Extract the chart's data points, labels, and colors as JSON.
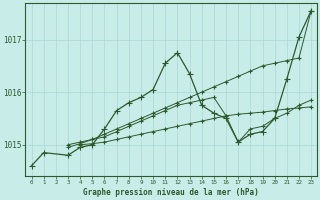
{
  "xlabel": "Graphe pression niveau de la mer (hPa)",
  "background_color": "#c8ece8",
  "grid_color": "#a8d8d4",
  "line_color": "#2d5a2d",
  "xlim": [
    -0.5,
    23.5
  ],
  "ylim": [
    1014.4,
    1017.7
  ],
  "yticks": [
    1015,
    1016,
    1017
  ],
  "xticks": [
    0,
    1,
    2,
    3,
    4,
    5,
    6,
    7,
    8,
    9,
    10,
    11,
    12,
    13,
    14,
    15,
    16,
    17,
    18,
    19,
    20,
    21,
    22,
    23
  ],
  "series": [
    {
      "x": [
        0,
        1,
        3,
        4,
        5,
        6,
        7,
        8,
        9,
        10,
        11,
        12,
        13,
        14,
        15,
        16,
        17,
        18,
        19,
        20,
        21,
        22,
        23
      ],
      "y": [
        1014.6,
        1014.85,
        1014.8,
        1014.95,
        1015.0,
        1015.3,
        1015.65,
        1015.8,
        1015.9,
        1016.05,
        1016.55,
        1016.75,
        1016.35,
        1015.75,
        1015.6,
        1015.5,
        1015.05,
        1015.2,
        1015.25,
        1015.5,
        1016.25,
        1017.05,
        1017.55
      ]
    },
    {
      "x": [
        3,
        4,
        5,
        6,
        7,
        8,
        9,
        10,
        11,
        12,
        13,
        14,
        15,
        16,
        17,
        18,
        19,
        20,
        21,
        22,
        23
      ],
      "y": [
        1014.95,
        1015.02,
        1015.1,
        1015.2,
        1015.3,
        1015.4,
        1015.5,
        1015.6,
        1015.7,
        1015.8,
        1015.9,
        1016.0,
        1016.1,
        1016.2,
        1016.3,
        1016.4,
        1016.5,
        1016.55,
        1016.6,
        1016.65,
        1017.55
      ]
    },
    {
      "x": [
        3,
        4,
        5,
        6,
        7,
        8,
        9,
        10,
        11,
        12,
        13,
        14,
        15,
        16,
        17,
        18,
        19,
        20,
        21,
        22,
        23
      ],
      "y": [
        1015.0,
        1015.05,
        1015.1,
        1015.15,
        1015.25,
        1015.35,
        1015.45,
        1015.55,
        1015.65,
        1015.75,
        1015.8,
        1015.85,
        1015.9,
        1015.55,
        1015.05,
        1015.3,
        1015.35,
        1015.5,
        1015.6,
        1015.75,
        1015.85
      ]
    },
    {
      "x": [
        4,
        5,
        6,
        7,
        8,
        9,
        10,
        11,
        12,
        13,
        14,
        15,
        16,
        17,
        18,
        19,
        20,
        21,
        22,
        23
      ],
      "y": [
        1015.0,
        1015.02,
        1015.05,
        1015.1,
        1015.15,
        1015.2,
        1015.25,
        1015.3,
        1015.35,
        1015.4,
        1015.45,
        1015.5,
        1015.55,
        1015.58,
        1015.6,
        1015.62,
        1015.65,
        1015.68,
        1015.7,
        1015.72
      ]
    }
  ]
}
